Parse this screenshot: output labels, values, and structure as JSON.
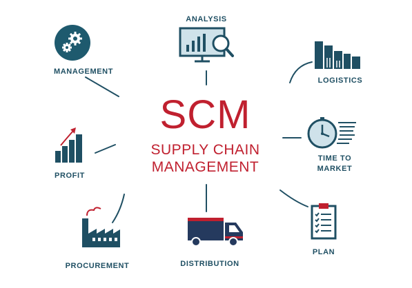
{
  "center": {
    "acronym": "SCM",
    "line1": "SUPPLY CHAIN",
    "line2": "MANAGEMENT"
  },
  "nodes": {
    "analysis": "ANALYSIS",
    "management": "MANAGEMENT",
    "logistics": "LOGISTICS",
    "profit": "PROFIT",
    "time_to_market_1": "TIME TO",
    "time_to_market_2": "MARKET",
    "procurement": "PROCUREMENT",
    "distribution": "DISTRIBUTION",
    "plan": "PLAN"
  },
  "colors": {
    "navy": "#1f4f63",
    "dark_navy": "#253a5e",
    "red": "#c0202f",
    "teal_circle": "#1e5a6e",
    "light_teal": "#cfe2ea"
  },
  "icons": {
    "analysis": "monitor-magnifier-icon",
    "management": "gears-icon",
    "logistics": "bar-chart-icon",
    "profit": "growth-chart-icon",
    "time_to_market": "stopwatch-icon",
    "procurement": "factory-icon",
    "distribution": "truck-icon",
    "plan": "clipboard-icon"
  }
}
